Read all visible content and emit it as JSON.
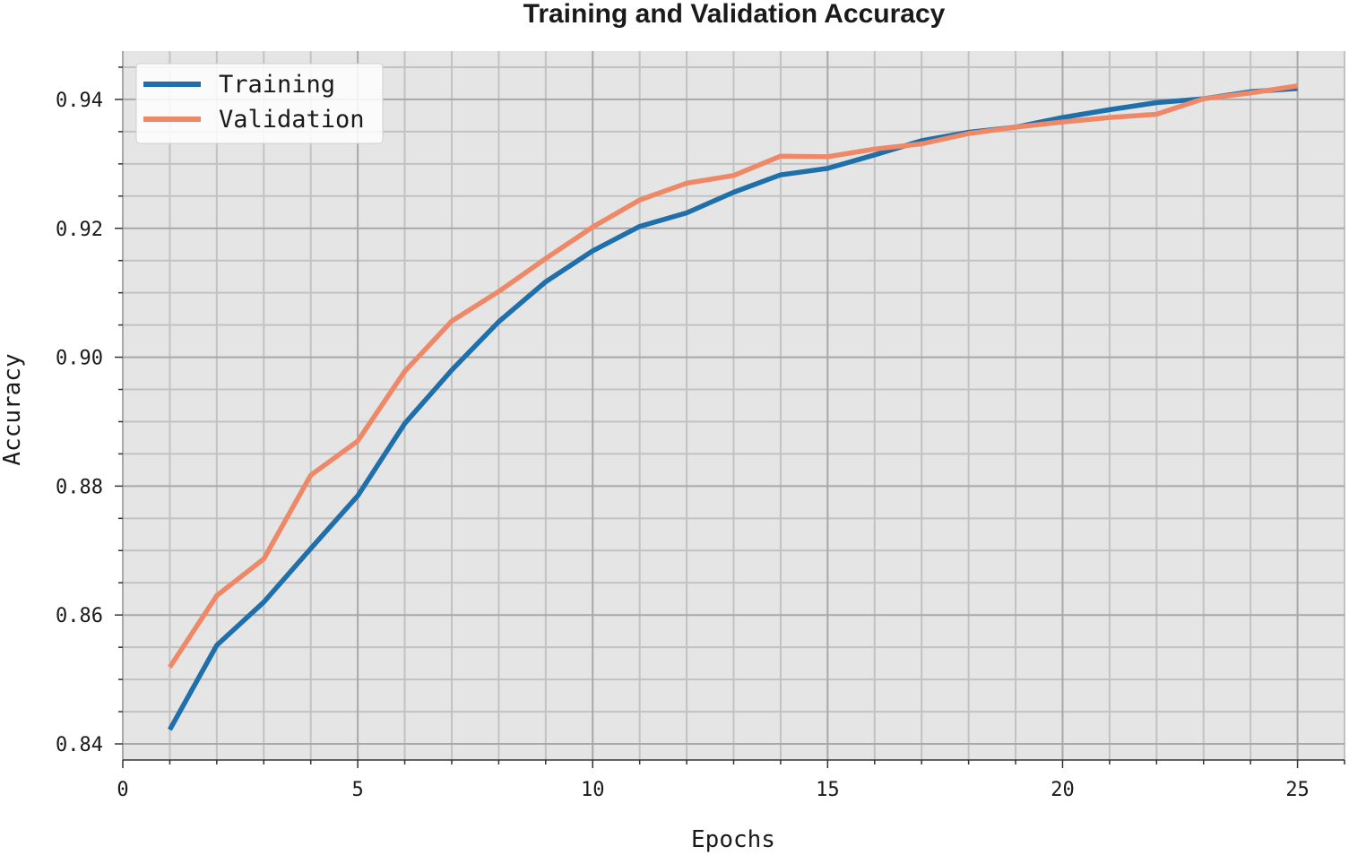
{
  "chart_data": {
    "type": "line",
    "title": "Training and Validation Accuracy",
    "xlabel": "Epochs",
    "ylabel": "Accuracy",
    "xlim": [
      0,
      26
    ],
    "ylim": [
      0.8375,
      0.9475
    ],
    "xticks": [
      0,
      5,
      10,
      15,
      20,
      25
    ],
    "xtick_labels": [
      "0",
      "5",
      "10",
      "15",
      "20",
      "25"
    ],
    "yticks": [
      0.84,
      0.86,
      0.88,
      0.9,
      0.92,
      0.94
    ],
    "ytick_labels": [
      "0.84",
      "0.86",
      "0.88",
      "0.90",
      "0.92",
      "0.94"
    ],
    "grid": true,
    "minor_grid": true,
    "legend_position": "top-left",
    "x": [
      1,
      2,
      3,
      4,
      5,
      6,
      7,
      8,
      9,
      10,
      11,
      12,
      13,
      14,
      15,
      16,
      17,
      18,
      19,
      20,
      21,
      22,
      23,
      24,
      25
    ],
    "series": [
      {
        "name": "Training",
        "color": "#1f6fab",
        "values": [
          0.8422,
          0.8553,
          0.862,
          0.8703,
          0.8785,
          0.8897,
          0.898,
          0.9055,
          0.9117,
          0.9165,
          0.9203,
          0.9224,
          0.9256,
          0.9283,
          0.9293,
          0.9314,
          0.9336,
          0.9349,
          0.9357,
          0.9372,
          0.9384,
          0.9395,
          0.9401,
          0.9412,
          0.9417
        ]
      },
      {
        "name": "Validation",
        "color": "#ee8866",
        "values": [
          0.8519,
          0.863,
          0.8687,
          0.8817,
          0.887,
          0.8978,
          0.9056,
          0.9102,
          0.9153,
          0.9202,
          0.9244,
          0.927,
          0.9282,
          0.9312,
          0.9311,
          0.9323,
          0.9331,
          0.9347,
          0.9357,
          0.9365,
          0.9372,
          0.9377,
          0.9401,
          0.941,
          0.9421
        ]
      }
    ]
  },
  "colors": {
    "plot_background": "#e5e5e5",
    "grid_major": "#a8a8a8",
    "grid_minor": "#c2c2c2",
    "text": "#1a1a1a"
  }
}
